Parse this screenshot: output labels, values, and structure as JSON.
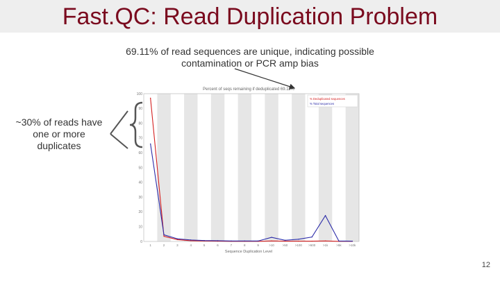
{
  "slide": {
    "title": "Fast.QC: Read Duplication Problem",
    "annotation_top": "69.11% of read sequences are unique, indicating possible contamination or PCR amp bias",
    "annotation_left": "~30% of reads have one or more duplicates",
    "page_number": "12"
  },
  "colors": {
    "title": "#7a0a1e",
    "dedup_series": "#d42020",
    "total_series": "#2a2aa8",
    "stripe": "#e6e6e6"
  },
  "chart_data": {
    "type": "line",
    "title": "Percent of seqs remaining if deduplicated 69.11%",
    "xlabel": "Sequence Duplication Level",
    "ylabel": "",
    "categories": [
      "1",
      "2",
      "3",
      "4",
      "5",
      "6",
      "7",
      "8",
      "9",
      ">10",
      ">50",
      ">100",
      ">500",
      ">1k",
      ">5k",
      ">10k"
    ],
    "ylim": [
      0,
      100
    ],
    "yticks": [
      0,
      10,
      20,
      30,
      40,
      50,
      60,
      70,
      80,
      90,
      100
    ],
    "grid": "alternating vertical stripes",
    "legend_position": "top-right",
    "series": [
      {
        "name": "% Deduplicated sequences",
        "color": "#d42020",
        "values": [
          97,
          3.5,
          1.2,
          0.5,
          0.3,
          0.2,
          0.1,
          0.1,
          0.1,
          0.3,
          0.2,
          0.2,
          0.2,
          0.3,
          0.1,
          0.1
        ]
      },
      {
        "name": "% Total sequences",
        "color": "#2a2aa8",
        "values": [
          66,
          4.5,
          1.8,
          1.0,
          0.6,
          0.5,
          0.3,
          0.3,
          0.3,
          2.8,
          0.8,
          1.5,
          3.0,
          17.5,
          0.3,
          0.2
        ]
      }
    ]
  }
}
